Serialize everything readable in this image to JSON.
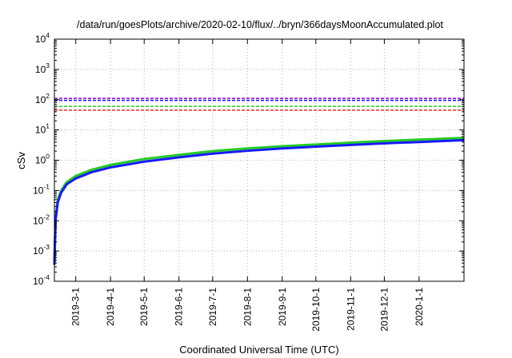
{
  "chart_data": {
    "type": "line",
    "title": "/data/run/goesPlots/archive/2020-02-10/flux/../bryn/366daysMoonAccumulated.plot",
    "xlabel": "Coordinated Universal Time (UTC)",
    "ylabel": "cSv",
    "yscale": "log",
    "ylim": [
      0.0001,
      10000
    ],
    "xlim": [
      "2019-02-10",
      "2020-02-10"
    ],
    "y_ticks": [
      {
        "base": "10",
        "exp": "-4",
        "value": 0.0001
      },
      {
        "base": "10",
        "exp": "-3",
        "value": 0.001
      },
      {
        "base": "10",
        "exp": "-2",
        "value": 0.01
      },
      {
        "base": "10",
        "exp": "-1",
        "value": 0.1
      },
      {
        "base": "10",
        "exp": "0",
        "value": 1
      },
      {
        "base": "10",
        "exp": "1",
        "value": 10
      },
      {
        "base": "10",
        "exp": "2",
        "value": 100
      },
      {
        "base": "10",
        "exp": "3",
        "value": 1000
      },
      {
        "base": "10",
        "exp": "4",
        "value": 10000
      }
    ],
    "x_ticks": [
      {
        "label": "2019-3-1",
        "date": "2019-03-01"
      },
      {
        "label": "2019-4-1",
        "date": "2019-04-01"
      },
      {
        "label": "2019-5-1",
        "date": "2019-05-01"
      },
      {
        "label": "2019-6-1",
        "date": "2019-06-01"
      },
      {
        "label": "2019-7-1",
        "date": "2019-07-01"
      },
      {
        "label": "2019-8-1",
        "date": "2019-08-01"
      },
      {
        "label": "2019-9-1",
        "date": "2019-09-01"
      },
      {
        "label": "2019-10-1",
        "date": "2019-10-01"
      },
      {
        "label": "2019-11-1",
        "date": "2019-11-01"
      },
      {
        "label": "2019-12-1",
        "date": "2019-12-01"
      },
      {
        "label": "2020-1-1",
        "date": "2020-01-01"
      }
    ],
    "grid": true,
    "thresholds": [
      {
        "value": 110,
        "color": "#9400d3"
      },
      {
        "value": 95,
        "color": "#1a1aff"
      },
      {
        "value": 60,
        "color": "#22cc22"
      },
      {
        "value": 45,
        "color": "#ff2020"
      }
    ],
    "series": [
      {
        "color": "#22cc22",
        "x": [
          "2019-02-10",
          "2019-02-11",
          "2019-02-13",
          "2019-02-16",
          "2019-02-21",
          "2019-03-01",
          "2019-03-15",
          "2019-04-01",
          "2019-05-01",
          "2019-06-01",
          "2019-07-01",
          "2019-08-01",
          "2019-09-01",
          "2019-10-01",
          "2019-11-01",
          "2019-12-01",
          "2020-01-01",
          "2020-02-10"
        ],
        "y": [
          0.0004,
          0.012,
          0.05,
          0.1,
          0.19,
          0.3,
          0.48,
          0.7,
          1.1,
          1.5,
          2.0,
          2.45,
          2.9,
          3.3,
          3.8,
          4.3,
          4.8,
          5.5
        ]
      },
      {
        "color": "#1a1aff",
        "x": [
          "2019-02-10",
          "2019-02-11",
          "2019-02-13",
          "2019-02-16",
          "2019-02-21",
          "2019-03-01",
          "2019-03-15",
          "2019-04-01",
          "2019-05-01",
          "2019-06-01",
          "2019-07-01",
          "2019-08-01",
          "2019-09-01",
          "2019-10-01",
          "2019-11-01",
          "2019-12-01",
          "2020-01-01",
          "2020-02-10"
        ],
        "y": [
          0.00035,
          0.01,
          0.04,
          0.085,
          0.16,
          0.25,
          0.4,
          0.58,
          0.9,
          1.25,
          1.65,
          2.05,
          2.45,
          2.8,
          3.2,
          3.6,
          4.0,
          4.6
        ]
      }
    ]
  }
}
